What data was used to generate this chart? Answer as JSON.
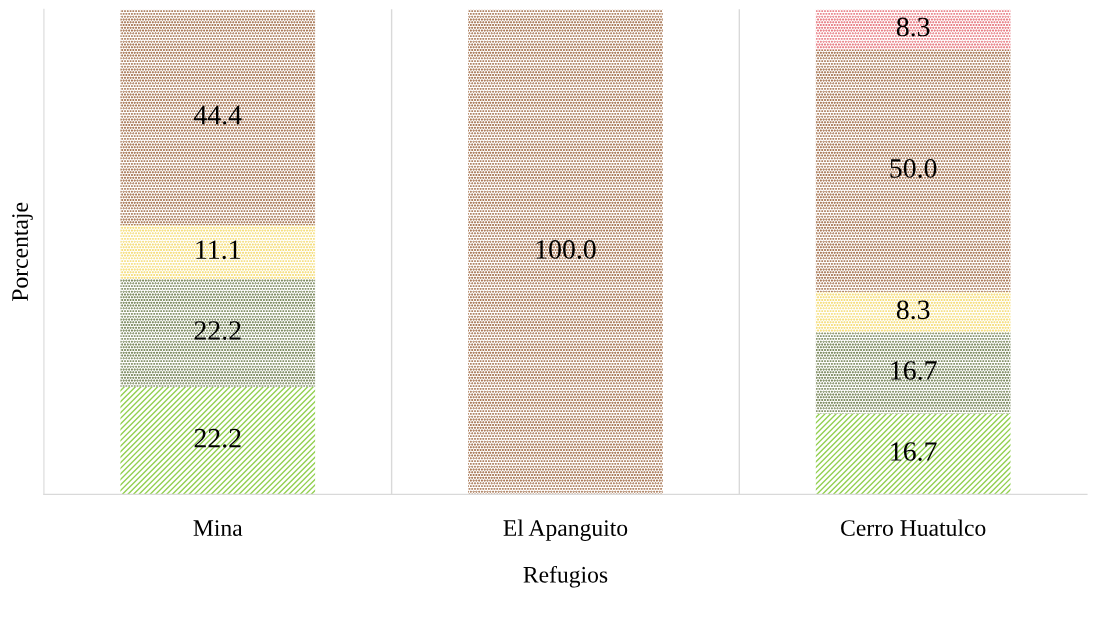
{
  "chart_data": {
    "type": "bar",
    "stacked": true,
    "xlabel": "Refugios",
    "ylabel": "Porcentaje",
    "categories": [
      "Mina",
      "El Apanguito",
      "Cerro Huatulco"
    ],
    "series": [
      {
        "color": "#92d050",
        "values": [
          22.2,
          null,
          16.7
        ],
        "value_labels": [
          "22.2",
          null,
          "16.7"
        ]
      },
      {
        "color": "#4f6228",
        "values": [
          22.2,
          null,
          16.7
        ],
        "value_labels": [
          "22.2",
          null,
          "16.7"
        ]
      },
      {
        "color": "#f2d34f",
        "values": [
          11.1,
          null,
          8.3
        ],
        "value_labels": [
          "11.1",
          null,
          "8.3"
        ]
      },
      {
        "color": "#8b4a1c",
        "values": [
          44.4,
          100.0,
          50.0
        ],
        "value_labels": [
          "44.4",
          "100.0",
          "50.0"
        ]
      },
      {
        "color": "#e0505a",
        "values": [
          null,
          null,
          8.3
        ],
        "value_labels": [
          null,
          null,
          "8.3"
        ]
      }
    ],
    "ylim": [
      0,
      100
    ],
    "tick_labels": "x",
    "grid": false,
    "legend": false
  }
}
